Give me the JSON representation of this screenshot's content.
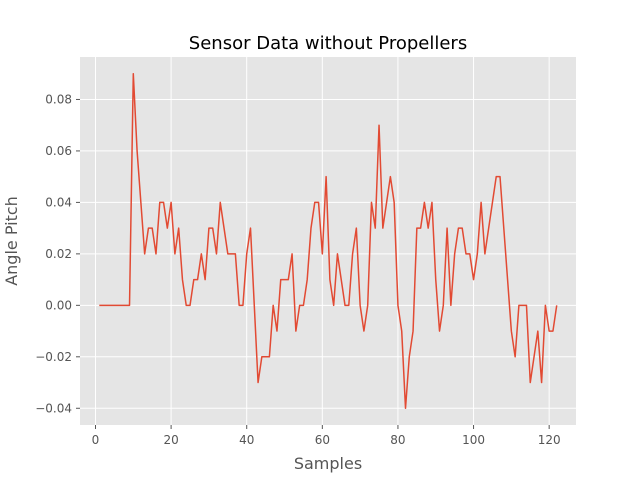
{
  "chart_data": {
    "type": "line",
    "title": "Sensor Data without Propellers",
    "xlabel": "Samples",
    "ylabel": "Angle Pitch",
    "xlim": [
      -4.1,
      127.1
    ],
    "ylim": [
      -0.0465,
      0.0965
    ],
    "xticks": [
      0,
      20,
      40,
      60,
      80,
      100,
      120
    ],
    "xtick_labels": [
      "0",
      "20",
      "40",
      "60",
      "80",
      "100",
      "120"
    ],
    "yticks": [
      -0.04,
      -0.02,
      0.0,
      0.02,
      0.04,
      0.06,
      0.08
    ],
    "ytick_labels": [
      "−0.04",
      "−0.02",
      "0.00",
      "0.02",
      "0.04",
      "0.06",
      "0.08"
    ],
    "grid": true,
    "style": "ggplot",
    "colors": {
      "background": "#e5e5e5",
      "grid": "#ffffff",
      "line": "#e24a33",
      "text": "#555555"
    },
    "series": [
      {
        "x_start": 1,
        "values": [
          0,
          0,
          0,
          0,
          0,
          0,
          0,
          0,
          0,
          0.09,
          0.06,
          0.04,
          0.02,
          0.03,
          0.03,
          0.02,
          0.04,
          0.04,
          0.03,
          0.04,
          0.02,
          0.03,
          0.01,
          0,
          0,
          0.01,
          0.01,
          0.02,
          0.01,
          0.03,
          0.03,
          0.02,
          0.04,
          0.03,
          0.02,
          0.02,
          0.02,
          0,
          0,
          0.02,
          0.03,
          0,
          -0.03,
          -0.02,
          -0.02,
          -0.02,
          0,
          -0.01,
          0.01,
          0.01,
          0.01,
          0.02,
          -0.01,
          0,
          0,
          0.01,
          0.03,
          0.04,
          0.04,
          0.02,
          0.05,
          0.01,
          0,
          0.02,
          0.01,
          0,
          0,
          0.02,
          0.03,
          0,
          -0.01,
          0,
          0.04,
          0.03,
          0.07,
          0.03,
          0.04,
          0.05,
          0.04,
          0,
          -0.01,
          -0.04,
          -0.02,
          -0.01,
          0.03,
          0.03,
          0.04,
          0.03,
          0.04,
          0.01,
          -0.01,
          0,
          0.03,
          0,
          0.02,
          0.03,
          0.03,
          0.02,
          0.02,
          0.01,
          0.02,
          0.04,
          0.02,
          0.03,
          0.04,
          0.05,
          0.05,
          0.03,
          0.01,
          -0.01,
          -0.02,
          0,
          0,
          0,
          -0.03,
          -0.02,
          -0.01,
          -0.03,
          0,
          -0.01,
          -0.01,
          0
        ]
      }
    ]
  }
}
